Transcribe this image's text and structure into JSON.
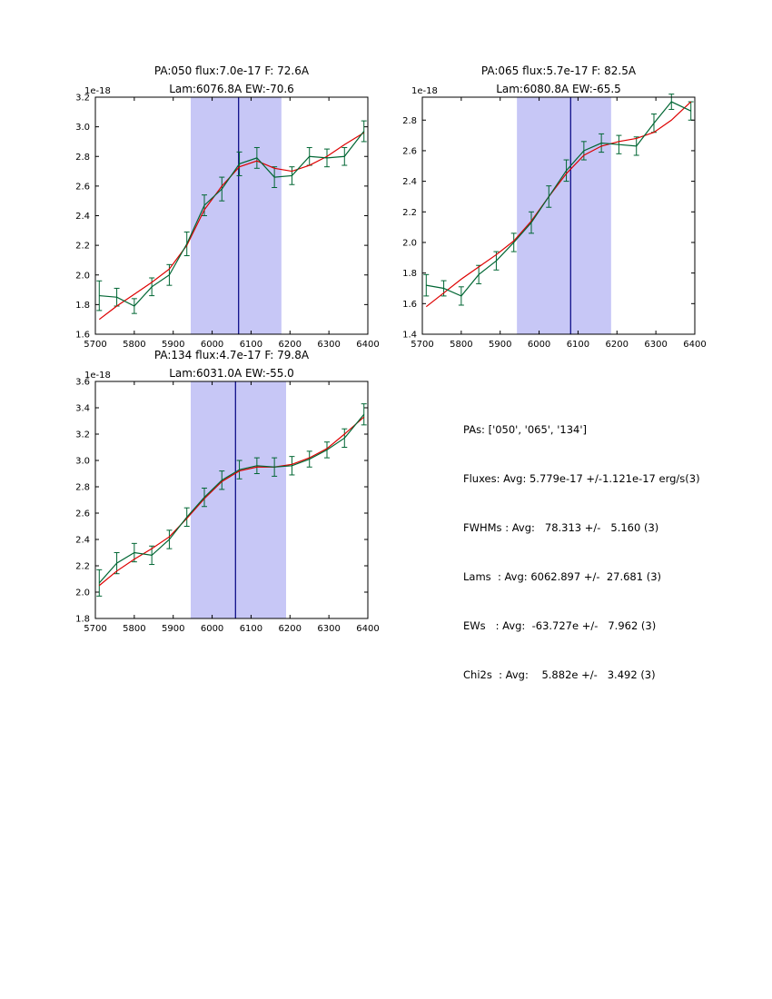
{
  "colors": {
    "data_line": "#006633",
    "fit_line": "#dd0000",
    "band_fill": "#9999ee",
    "band_opacity": 0.55,
    "vline": "#000080",
    "axes": "#000000",
    "text": "#000000"
  },
  "stats_panel": {
    "lines": [
      "PAs: ['050', '065', '134']",
      "Fluxes: Avg: 5.779e-17 +/-1.121e-17 erg/s(3)",
      "FWHMs : Avg:   78.313 +/-   5.160 (3)",
      "Lams  : Avg: 6062.897 +/-  27.681 (3)",
      "EWs   : Avg:  -63.727e +/-   7.962 (3)",
      "Chi2s  : Avg:    5.882e +/-   3.492 (3)"
    ]
  },
  "chart_data": [
    {
      "type": "line",
      "name": "pa050",
      "title_line1": "PA:050 flux:7.0e-17 F: 72.6A",
      "title_line2": "Lam:6076.8A EW:-70.6",
      "offset_label": "1e-18",
      "xlim": [
        5700,
        6400
      ],
      "ylim": [
        1.6,
        3.2
      ],
      "xticks": [
        5700,
        5800,
        5900,
        6000,
        6100,
        6200,
        6300,
        6400
      ],
      "yticks": [
        1.6,
        1.8,
        2.0,
        2.2,
        2.4,
        2.6,
        2.8,
        3.0,
        3.2
      ],
      "band": [
        5945,
        6178
      ],
      "vline": 6068,
      "x": [
        5710,
        5755,
        5800,
        5845,
        5890,
        5935,
        5980,
        6025,
        6070,
        6115,
        6160,
        6205,
        6250,
        6295,
        6340,
        6390
      ],
      "series": [
        {
          "name": "data",
          "color_key": "data_line",
          "values": [
            1.86,
            1.85,
            1.79,
            1.92,
            2.0,
            2.21,
            2.47,
            2.58,
            2.75,
            2.79,
            2.66,
            2.67,
            2.8,
            2.79,
            2.8,
            2.97
          ],
          "yerr": [
            0.1,
            0.06,
            0.05,
            0.06,
            0.07,
            0.08,
            0.07,
            0.08,
            0.08,
            0.07,
            0.07,
            0.06,
            0.06,
            0.06,
            0.06,
            0.07
          ]
        },
        {
          "name": "fit",
          "color_key": "fit_line",
          "values": [
            1.7,
            1.79,
            1.87,
            1.95,
            2.04,
            2.2,
            2.44,
            2.6,
            2.73,
            2.77,
            2.72,
            2.7,
            2.74,
            2.8,
            2.88,
            2.96
          ]
        }
      ]
    },
    {
      "type": "line",
      "name": "pa065",
      "title_line1": "PA:065 flux:5.7e-17 F: 82.5A",
      "title_line2": "Lam:6080.8A EW:-65.5",
      "offset_label": "1e-18",
      "xlim": [
        5700,
        6400
      ],
      "ylim": [
        1.4,
        2.95
      ],
      "xticks": [
        5700,
        5800,
        5900,
        6000,
        6100,
        6200,
        6300,
        6400
      ],
      "yticks": [
        1.4,
        1.6,
        1.8,
        2.0,
        2.2,
        2.4,
        2.6,
        2.8
      ],
      "band": [
        5943,
        6185
      ],
      "vline": 6081,
      "x": [
        5710,
        5755,
        5800,
        5845,
        5890,
        5935,
        5980,
        6025,
        6070,
        6115,
        6160,
        6205,
        6250,
        6295,
        6340,
        6390
      ],
      "series": [
        {
          "name": "data",
          "color_key": "data_line",
          "values": [
            1.72,
            1.7,
            1.65,
            1.79,
            1.88,
            2.0,
            2.13,
            2.3,
            2.47,
            2.6,
            2.65,
            2.64,
            2.63,
            2.78,
            2.92,
            2.86
          ],
          "yerr": [
            0.07,
            0.05,
            0.06,
            0.06,
            0.06,
            0.06,
            0.07,
            0.07,
            0.07,
            0.06,
            0.06,
            0.06,
            0.06,
            0.06,
            0.05,
            0.06
          ]
        },
        {
          "name": "fit",
          "color_key": "fit_line",
          "values": [
            1.58,
            1.67,
            1.76,
            1.84,
            1.92,
            2.01,
            2.14,
            2.3,
            2.45,
            2.57,
            2.63,
            2.66,
            2.68,
            2.72,
            2.8,
            2.92
          ]
        }
      ]
    },
    {
      "type": "line",
      "name": "pa134",
      "title_line1": "PA:134 flux:4.7e-17 F: 79.8A",
      "title_line2": "Lam:6031.0A EW:-55.0",
      "offset_label": "1e-18",
      "xlim": [
        5700,
        6400
      ],
      "ylim": [
        1.8,
        3.6
      ],
      "xticks": [
        5700,
        5800,
        5900,
        6000,
        6100,
        6200,
        6300,
        6400
      ],
      "yticks": [
        1.8,
        2.0,
        2.2,
        2.4,
        2.6,
        2.8,
        3.0,
        3.2,
        3.4,
        3.6
      ],
      "band": [
        5945,
        6190
      ],
      "vline": 6060,
      "x": [
        5710,
        5755,
        5800,
        5845,
        5890,
        5935,
        5980,
        6025,
        6070,
        6115,
        6160,
        6205,
        6250,
        6295,
        6340,
        6390
      ],
      "series": [
        {
          "name": "data",
          "color_key": "data_line",
          "values": [
            2.07,
            2.22,
            2.3,
            2.28,
            2.4,
            2.57,
            2.72,
            2.85,
            2.93,
            2.96,
            2.95,
            2.96,
            3.01,
            3.08,
            3.17,
            3.35
          ],
          "yerr": [
            0.1,
            0.08,
            0.07,
            0.07,
            0.07,
            0.07,
            0.07,
            0.07,
            0.07,
            0.06,
            0.07,
            0.07,
            0.06,
            0.06,
            0.07,
            0.08
          ]
        },
        {
          "name": "fit",
          "color_key": "fit_line",
          "values": [
            2.05,
            2.16,
            2.25,
            2.33,
            2.42,
            2.56,
            2.71,
            2.84,
            2.92,
            2.95,
            2.95,
            2.97,
            3.02,
            3.09,
            3.2,
            3.33
          ]
        }
      ]
    }
  ]
}
